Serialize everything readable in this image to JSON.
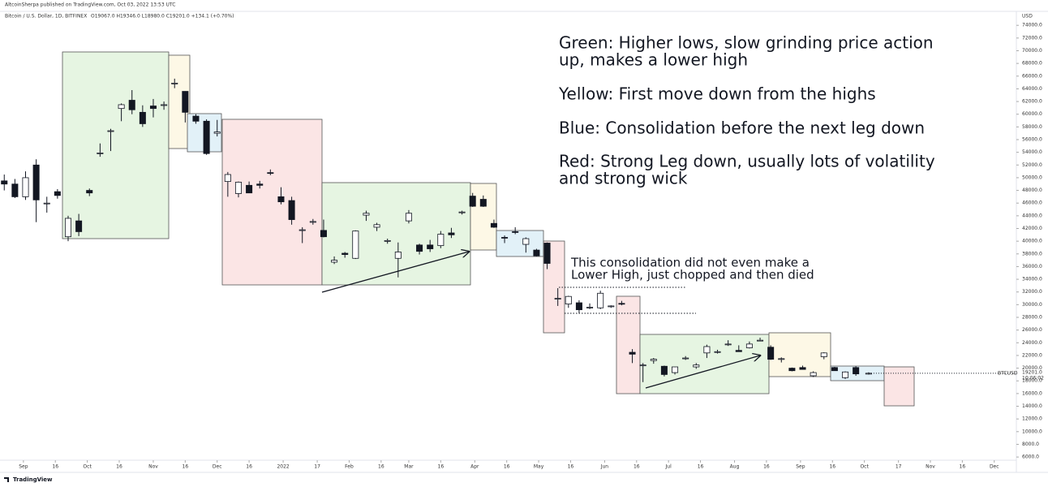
{
  "header": {
    "publisher": "AltcoinSherpa published on TradingView.com, Oct 03, 2022 13:53 UTC",
    "footer": "TradingView"
  },
  "chart_data": {
    "type": "candlestick",
    "symbol": "Bitcoin / U.S. Dollar, 1D, BITFINEX",
    "ohlc_label": "O19067.0 H19346.0 L18980.0 C19201.0 +134.1 (+0.70%)",
    "currency": "USD",
    "last_symbol": "BTCUSD",
    "last_price": {
      "value": 19201,
      "label": "19201.0"
    },
    "countdown": "10:06:02",
    "annotations": [
      "Green: Higher lows, slow grinding price action",
      "up, makes a lower high",
      "Yellow: First move down from the highs",
      "Blue: Consolidation before the next leg down",
      "Red: Strong Leg down, usually lots of volatility",
      "and strong wick"
    ],
    "note": [
      "This consolidation did not even make a",
      "Lower High, just chopped and then died"
    ],
    "color": "#131722",
    "x": [
      "2021-08-23",
      "2021-08-28",
      "2021-09-02",
      "2021-09-07",
      "2021-09-12",
      "2021-09-17",
      "2021-09-22",
      "2021-09-27",
      "2021-10-02",
      "2021-10-07",
      "2021-10-12",
      "2021-10-17",
      "2021-10-22",
      "2021-10-27",
      "2021-11-01",
      "2021-11-06",
      "2021-11-11",
      "2021-11-16",
      "2021-11-21",
      "2021-11-26",
      "2021-12-01",
      "2021-12-06",
      "2021-12-11",
      "2021-12-16",
      "2021-12-21",
      "2021-12-26",
      "2021-12-31",
      "2022-01-05",
      "2022-01-10",
      "2022-01-15",
      "2022-01-20",
      "2022-01-25",
      "2022-01-30",
      "2022-02-04",
      "2022-02-09",
      "2022-02-14",
      "2022-02-19",
      "2022-02-24",
      "2022-03-01",
      "2022-03-06",
      "2022-03-11",
      "2022-03-16",
      "2022-03-21",
      "2022-03-26",
      "2022-03-31",
      "2022-04-05",
      "2022-04-10",
      "2022-04-15",
      "2022-04-20",
      "2022-04-25",
      "2022-04-30",
      "2022-05-05",
      "2022-05-10",
      "2022-05-15",
      "2022-05-20",
      "2022-05-25",
      "2022-05-30",
      "2022-06-04",
      "2022-06-09",
      "2022-06-14",
      "2022-06-19",
      "2022-06-24",
      "2022-06-29",
      "2022-07-04",
      "2022-07-09",
      "2022-07-14",
      "2022-07-19",
      "2022-07-24",
      "2022-07-29",
      "2022-08-03",
      "2022-08-08",
      "2022-08-13",
      "2022-08-18",
      "2022-08-23",
      "2022-08-28",
      "2022-09-02",
      "2022-09-07",
      "2022-09-12",
      "2022-09-17",
      "2022-09-22",
      "2022-09-27",
      "2022-10-03"
    ],
    "open": [
      49500,
      49000,
      47000,
      52000,
      46000,
      47800,
      40700,
      43200,
      48000,
      53800,
      57400,
      60900,
      62200,
      60300,
      61300,
      61500,
      64900,
      63600,
      59700,
      58900,
      57000,
      49400,
      47500,
      48800,
      49000,
      50800,
      47000,
      46400,
      41800,
      43000,
      41700,
      36700,
      38100,
      37300,
      44100,
      42200,
      40000,
      37300,
      43200,
      39400,
      39400,
      39300,
      41300,
      44600,
      47100,
      46600,
      42800,
      40600,
      41500,
      39500,
      38600,
      39700,
      31000,
      30100,
      30300,
      29500,
      29500,
      29700,
      30200,
      22500,
      20500,
      21200,
      20300,
      19300,
      21600,
      20200,
      22400,
      22600,
      23800,
      22800,
      23200,
      24400,
      23300,
      21500,
      20000,
      20100,
      18800,
      21800,
      20100,
      18500,
      20100,
      19067
    ],
    "high": [
      50500,
      49800,
      51000,
      52900,
      47000,
      48200,
      44000,
      44300,
      48300,
      55400,
      57700,
      61700,
      63800,
      61400,
      62400,
      62000,
      65600,
      63600,
      60000,
      59200,
      59100,
      50900,
      49400,
      49400,
      49500,
      51300,
      48500,
      47000,
      42200,
      43500,
      43400,
      37600,
      38300,
      41700,
      44800,
      42900,
      40400,
      39800,
      44900,
      39600,
      40200,
      41600,
      42100,
      44800,
      47600,
      47200,
      43400,
      40900,
      42200,
      40600,
      38800,
      39800,
      32600,
      31400,
      30700,
      30200,
      32200,
      29900,
      30600,
      23000,
      20800,
      21600,
      20400,
      20200,
      21900,
      20800,
      23700,
      22900,
      24400,
      23600,
      24200,
      24800,
      23600,
      21700,
      20100,
      20400,
      19500,
      22500,
      20200,
      19500,
      20300,
      19346
    ],
    "low": [
      48000,
      46800,
      46500,
      43000,
      44500,
      46700,
      40000,
      40800,
      47100,
      53300,
      54200,
      58900,
      60000,
      58000,
      59500,
      60700,
      64100,
      58700,
      58500,
      53600,
      56500,
      47000,
      46900,
      47600,
      48300,
      50400,
      45800,
      42600,
      39700,
      42600,
      40600,
      36400,
      37400,
      37200,
      43200,
      41600,
      39600,
      34300,
      42800,
      37900,
      38300,
      38900,
      40500,
      44200,
      45400,
      45400,
      42100,
      39700,
      41100,
      38200,
      37600,
      35600,
      29800,
      29500,
      28700,
      29300,
      29300,
      29500,
      29900,
      20800,
      17800,
      20700,
      18700,
      19000,
      21300,
      19900,
      21600,
      22300,
      23500,
      22700,
      23100,
      24300,
      21300,
      20900,
      19500,
      19800,
      18600,
      21400,
      19600,
      18300,
      18800,
      18980
    ],
    "close": [
      49000,
      47000,
      50000,
      46500,
      46000,
      47200,
      43600,
      41500,
      47600,
      53900,
      57400,
      61500,
      60700,
      58500,
      60900,
      61500,
      64900,
      60300,
      58900,
      53800,
      57200,
      50500,
      49300,
      47600,
      48800,
      50700,
      46200,
      43400,
      41800,
      43100,
      40700,
      37000,
      37900,
      41600,
      44400,
      42600,
      40100,
      38300,
      44400,
      38400,
      38800,
      41100,
      41000,
      44600,
      45500,
      45500,
      42200,
      40500,
      41400,
      40400,
      37700,
      36500,
      31000,
      31300,
      29200,
      29600,
      31800,
      29800,
      30100,
      22200,
      20500,
      21400,
      19000,
      20200,
      21600,
      20500,
      23400,
      22600,
      23800,
      22600,
      23800,
      24400,
      21400,
      21500,
      19600,
      19800,
      19300,
      22400,
      19600,
      19400,
      19100,
      19201
    ],
    "xlim": [
      "2021-08-21",
      "2022-12-11"
    ],
    "xticks": [
      {
        "value": "2021-09-01",
        "label": "Sep"
      },
      {
        "value": "2021-09-16",
        "label": "16"
      },
      {
        "value": "2021-10-01",
        "label": "Oct"
      },
      {
        "value": "2021-10-16",
        "label": "16"
      },
      {
        "value": "2021-11-01",
        "label": "Nov"
      },
      {
        "value": "2021-11-16",
        "label": "16"
      },
      {
        "value": "2021-12-01",
        "label": "Dec"
      },
      {
        "value": "2021-12-16",
        "label": "16"
      },
      {
        "value": "2022-01-01",
        "label": "2022"
      },
      {
        "value": "2022-01-17",
        "label": "17"
      },
      {
        "value": "2022-02-01",
        "label": "Feb"
      },
      {
        "value": "2022-02-16",
        "label": "16"
      },
      {
        "value": "2022-03-01",
        "label": "Mar"
      },
      {
        "value": "2022-03-16",
        "label": "16"
      },
      {
        "value": "2022-04-01",
        "label": "Apr"
      },
      {
        "value": "2022-04-16",
        "label": "16"
      },
      {
        "value": "2022-05-01",
        "label": "May"
      },
      {
        "value": "2022-05-16",
        "label": "16"
      },
      {
        "value": "2022-06-01",
        "label": "Jun"
      },
      {
        "value": "2022-06-16",
        "label": "16"
      },
      {
        "value": "2022-07-01",
        "label": "Jul"
      },
      {
        "value": "2022-07-16",
        "label": "16"
      },
      {
        "value": "2022-08-01",
        "label": "Aug"
      },
      {
        "value": "2022-08-16",
        "label": "16"
      },
      {
        "value": "2022-09-01",
        "label": "Sep"
      },
      {
        "value": "2022-09-16",
        "label": "16"
      },
      {
        "value": "2022-10-01",
        "label": "Oct"
      },
      {
        "value": "2022-10-17",
        "label": "17"
      },
      {
        "value": "2022-11-01",
        "label": "Nov"
      },
      {
        "value": "2022-11-16",
        "label": "16"
      },
      {
        "value": "2022-12-01",
        "label": "Dec"
      }
    ],
    "ylim": [
      5500,
      76200
    ],
    "yticks": [
      {
        "value": 74000,
        "label": "74000.0"
      },
      {
        "value": 72000,
        "label": "72000.0"
      },
      {
        "value": 70000,
        "label": "70000.0"
      },
      {
        "value": 68000,
        "label": "68000.0"
      },
      {
        "value": 66000,
        "label": "66000.0"
      },
      {
        "value": 64000,
        "label": "64000.0"
      },
      {
        "value": 62000,
        "label": "62000.0"
      },
      {
        "value": 60000,
        "label": "60000.0"
      },
      {
        "value": 58000,
        "label": "58000.0"
      },
      {
        "value": 56000,
        "label": "56000.0"
      },
      {
        "value": 54000,
        "label": "54000.0"
      },
      {
        "value": 52000,
        "label": "52000.0"
      },
      {
        "value": 50000,
        "label": "50000.0"
      },
      {
        "value": 48000,
        "label": "48000.0"
      },
      {
        "value": 46000,
        "label": "46000.0"
      },
      {
        "value": 44000,
        "label": "44000.0"
      },
      {
        "value": 42000,
        "label": "42000.0"
      },
      {
        "value": 40000,
        "label": "40000.0"
      },
      {
        "value": 38000,
        "label": "38000.0"
      },
      {
        "value": 36000,
        "label": "36000.0"
      },
      {
        "value": 34000,
        "label": "34000.0"
      },
      {
        "value": 32000,
        "label": "32000.0"
      },
      {
        "value": 30000,
        "label": "30000.0"
      },
      {
        "value": 28000,
        "label": "28000.0"
      },
      {
        "value": 26000,
        "label": "26000.0"
      },
      {
        "value": 24000,
        "label": "24000.0"
      },
      {
        "value": 22000,
        "label": "22000.0"
      },
      {
        "value": 20000,
        "label": "20000.0"
      },
      {
        "value": 18000,
        "label": "18000.0"
      },
      {
        "value": 16000,
        "label": "16000.0"
      },
      {
        "value": 14000,
        "label": "14000.0"
      },
      {
        "value": 12000,
        "label": "12000.0"
      },
      {
        "value": 10000,
        "label": "10000.0"
      },
      {
        "value": 8000,
        "label": "8000.0"
      },
      {
        "value": 6000,
        "label": "6000.0"
      }
    ],
    "grid": false
  }
}
